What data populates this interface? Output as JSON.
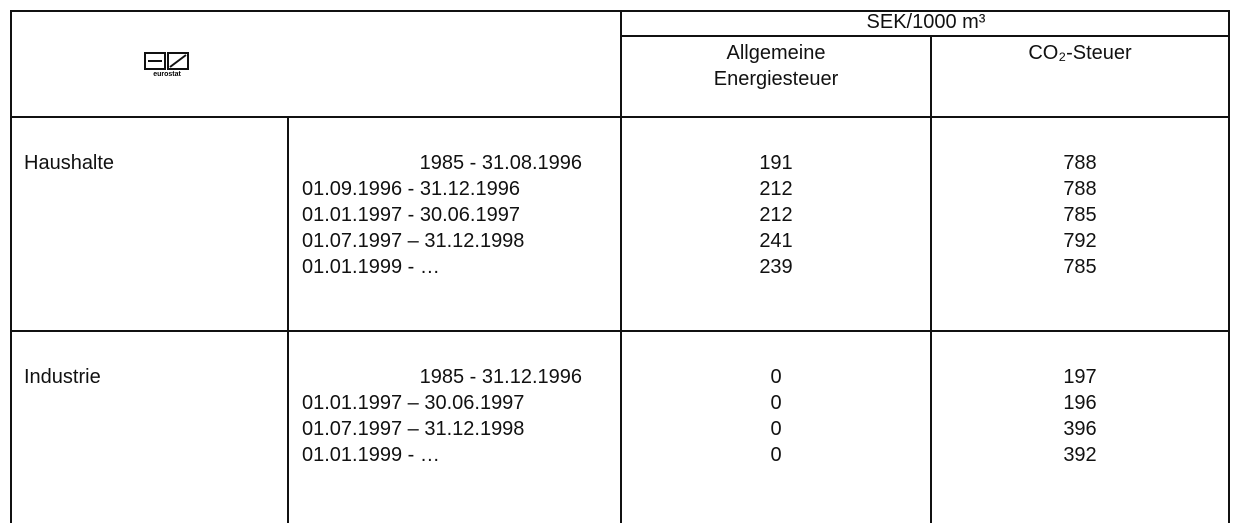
{
  "logo_text": "eurostat",
  "header": {
    "unit": "SEK/1000 m³",
    "columns": [
      "Allgemeine Energiesteuer",
      "CO₂-Steuer"
    ]
  },
  "sections": [
    {
      "label": "Haushalte",
      "rows": [
        {
          "period": "1985 - 31.08.1996",
          "energy": 191,
          "co2": 788
        },
        {
          "period": "01.09.1996 - 31.12.1996",
          "energy": 212,
          "co2": 788
        },
        {
          "period": "01.01.1997 - 30.06.1997",
          "energy": 212,
          "co2": 785
        },
        {
          "period": "01.07.1997 – 31.12.1998",
          "energy": 241,
          "co2": 792
        },
        {
          "period": "01.01.1999 - …",
          "energy": 239,
          "co2": 785
        }
      ]
    },
    {
      "label": "Industrie",
      "rows": [
        {
          "period": "1985 - 31.12.1996",
          "energy": 0,
          "co2": 197
        },
        {
          "period": "01.01.1997 – 30.06.1997",
          "energy": 0,
          "co2": 196
        },
        {
          "period": "01.07.1997 – 31.12.1998",
          "energy": 0,
          "co2": 396
        },
        {
          "period": "01.01.1999 - …",
          "energy": 0,
          "co2": 392
        }
      ]
    }
  ]
}
